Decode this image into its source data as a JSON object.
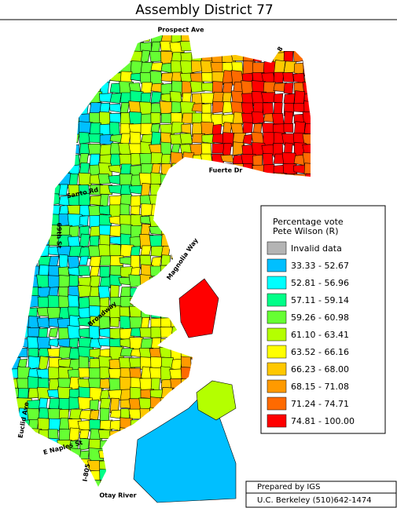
{
  "title": "Assembly District 77",
  "streets": [
    "Prospect Ave",
    "8",
    "Fuerte Dr",
    "Santo Rd",
    "69th St",
    "Magnolia Way",
    "Broadway",
    "Euclid Ave",
    "E Naples St",
    "I-805",
    "Otay River"
  ],
  "legend": {
    "title_lines": [
      "Percentage vote",
      "Pete Wilson (R)"
    ],
    "items": [
      {
        "label": "Invalid data",
        "color": "#b4b4b4"
      },
      {
        "label": "33.33 -  52.67",
        "color": "#00bfff"
      },
      {
        "label": "52.81 -  56.96",
        "color": "#00ffff"
      },
      {
        "label": "57.11 -  59.14",
        "color": "#00ff88"
      },
      {
        "label": "59.26 -  60.98",
        "color": "#66ff33"
      },
      {
        "label": "61.10 -  63.41",
        "color": "#b4ff00"
      },
      {
        "label": "63.52 -  66.16",
        "color": "#ffff00"
      },
      {
        "label": "66.23 -  68.00",
        "color": "#ffc800"
      },
      {
        "label": "68.15 -  71.08",
        "color": "#ff9a00"
      },
      {
        "label": "71.24 -  74.71",
        "color": "#ff6a00"
      },
      {
        "label": "74.81 - 100.00",
        "color": "#ff0000"
      }
    ]
  },
  "footer": [
    "Prepared by IGS",
    "U.C. Berkeley (510)642-1474"
  ]
}
